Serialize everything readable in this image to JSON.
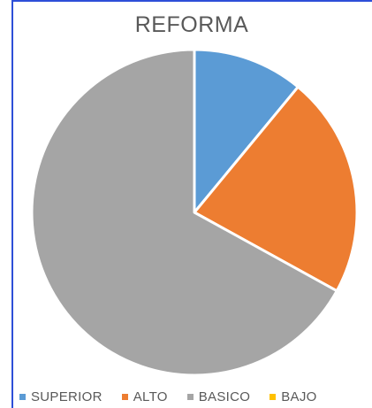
{
  "chart_data": {
    "type": "pie",
    "title": "REFORMA",
    "categories": [
      "SUPERIOR",
      "ALTO",
      "BASICO",
      "BAJO"
    ],
    "values": [
      11,
      22,
      67,
      0
    ],
    "colors": [
      "#5b9bd5",
      "#ed7d31",
      "#a5a5a5",
      "#ffc000"
    ],
    "start_angle_deg": 0,
    "legend_position": "bottom"
  }
}
